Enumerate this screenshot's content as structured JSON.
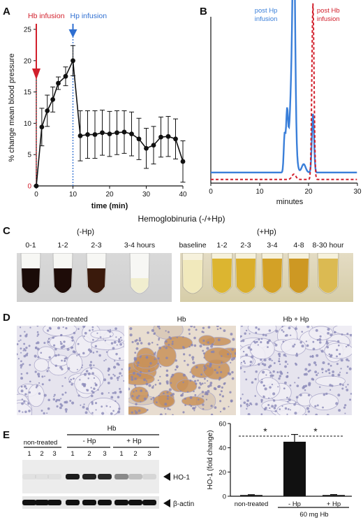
{
  "panels": {
    "A": {
      "label": "A",
      "markers": {
        "hb": "Hb infusion",
        "hp": "Hp infusion"
      },
      "colors": {
        "hb": "#d21f2b",
        "hp": "#2f6fd1"
      }
    },
    "B": {
      "label": "B"
    },
    "C": {
      "label": "C",
      "title": "Hemoglobinuria (-/+Hp)",
      "group_minus": {
        "title": "(-Hp)",
        "labels": [
          "0-1",
          "1-2",
          "2-3",
          "3-4 hours"
        ]
      },
      "group_plus": {
        "title": "(+Hp)",
        "labels": [
          "baseline",
          "1-2",
          "2-3",
          "3-4",
          "4-8",
          "8-30 hour"
        ]
      }
    },
    "D": {
      "label": "D",
      "labels": [
        "non-treated",
        "Hb",
        "Hb + Hp"
      ]
    },
    "E": {
      "label": "E",
      "blot": {
        "hb_header": "Hb",
        "groups": [
          "non-treated",
          "- Hp",
          "+ Hp"
        ],
        "lanes": [
          "1",
          "2",
          "3",
          "1",
          "2",
          "3",
          "1",
          "2",
          "3"
        ],
        "bands": [
          "HO-1",
          "β-actin"
        ],
        "ho1_intensity": [
          0.05,
          0.05,
          0.05,
          0.95,
          0.9,
          0.88,
          0.45,
          0.2,
          0.1
        ]
      },
      "bar": {
        "footer": "60 mg Hb",
        "star": "*"
      }
    }
  },
  "chart_data": [
    {
      "type": "line",
      "panel": "A",
      "xlabel": "time (min)",
      "ylabel": "% change mean blood pressure",
      "xlim": [
        0,
        40
      ],
      "ylim": [
        0,
        25
      ],
      "xticks": [
        0,
        10,
        20,
        30,
        40
      ],
      "yticks": [
        0,
        5,
        10,
        15,
        20,
        25
      ],
      "series": [
        {
          "x": [
            0,
            1.5,
            3,
            4.5,
            6,
            8,
            10,
            12,
            14,
            16,
            18,
            20,
            22,
            24,
            26,
            28,
            30,
            32,
            34,
            36,
            38,
            40
          ],
          "y": [
            0,
            9.4,
            12,
            13.8,
            16.4,
            17.5,
            20,
            8,
            8.2,
            8.2,
            8.5,
            8.3,
            8.5,
            8.6,
            8.3,
            7.5,
            6,
            6.5,
            7.8,
            7.9,
            7.5,
            3.9
          ],
          "err": [
            0,
            3,
            2.5,
            2,
            1,
            1.5,
            2.4,
            4,
            3.8,
            3.8,
            3.6,
            3.6,
            3.5,
            3.4,
            3.5,
            3.3,
            3.2,
            3,
            3.2,
            3.2,
            3.2,
            3.3
          ]
        }
      ]
    },
    {
      "type": "line",
      "panel": "B",
      "xlabel": "minutes",
      "xlim": [
        0,
        30
      ],
      "xticks": [
        0,
        10,
        20,
        30
      ],
      "series": [
        {
          "name": "post Hp infusion",
          "color": "#3a7fd9",
          "style": "solid"
        },
        {
          "name": "post Hb infusion",
          "color": "#d21f2b",
          "style": "dashed"
        }
      ]
    },
    {
      "type": "bar",
      "panel": "E",
      "ylabel": "HO-1 (fold change)",
      "ylim": [
        0,
        60
      ],
      "yticks": [
        0,
        20,
        40,
        60
      ],
      "categories": [
        "non-treated",
        "- Hp",
        "+ Hp"
      ],
      "values": [
        1,
        45,
        1
      ],
      "errors": [
        0.3,
        6,
        0.4
      ]
    }
  ]
}
